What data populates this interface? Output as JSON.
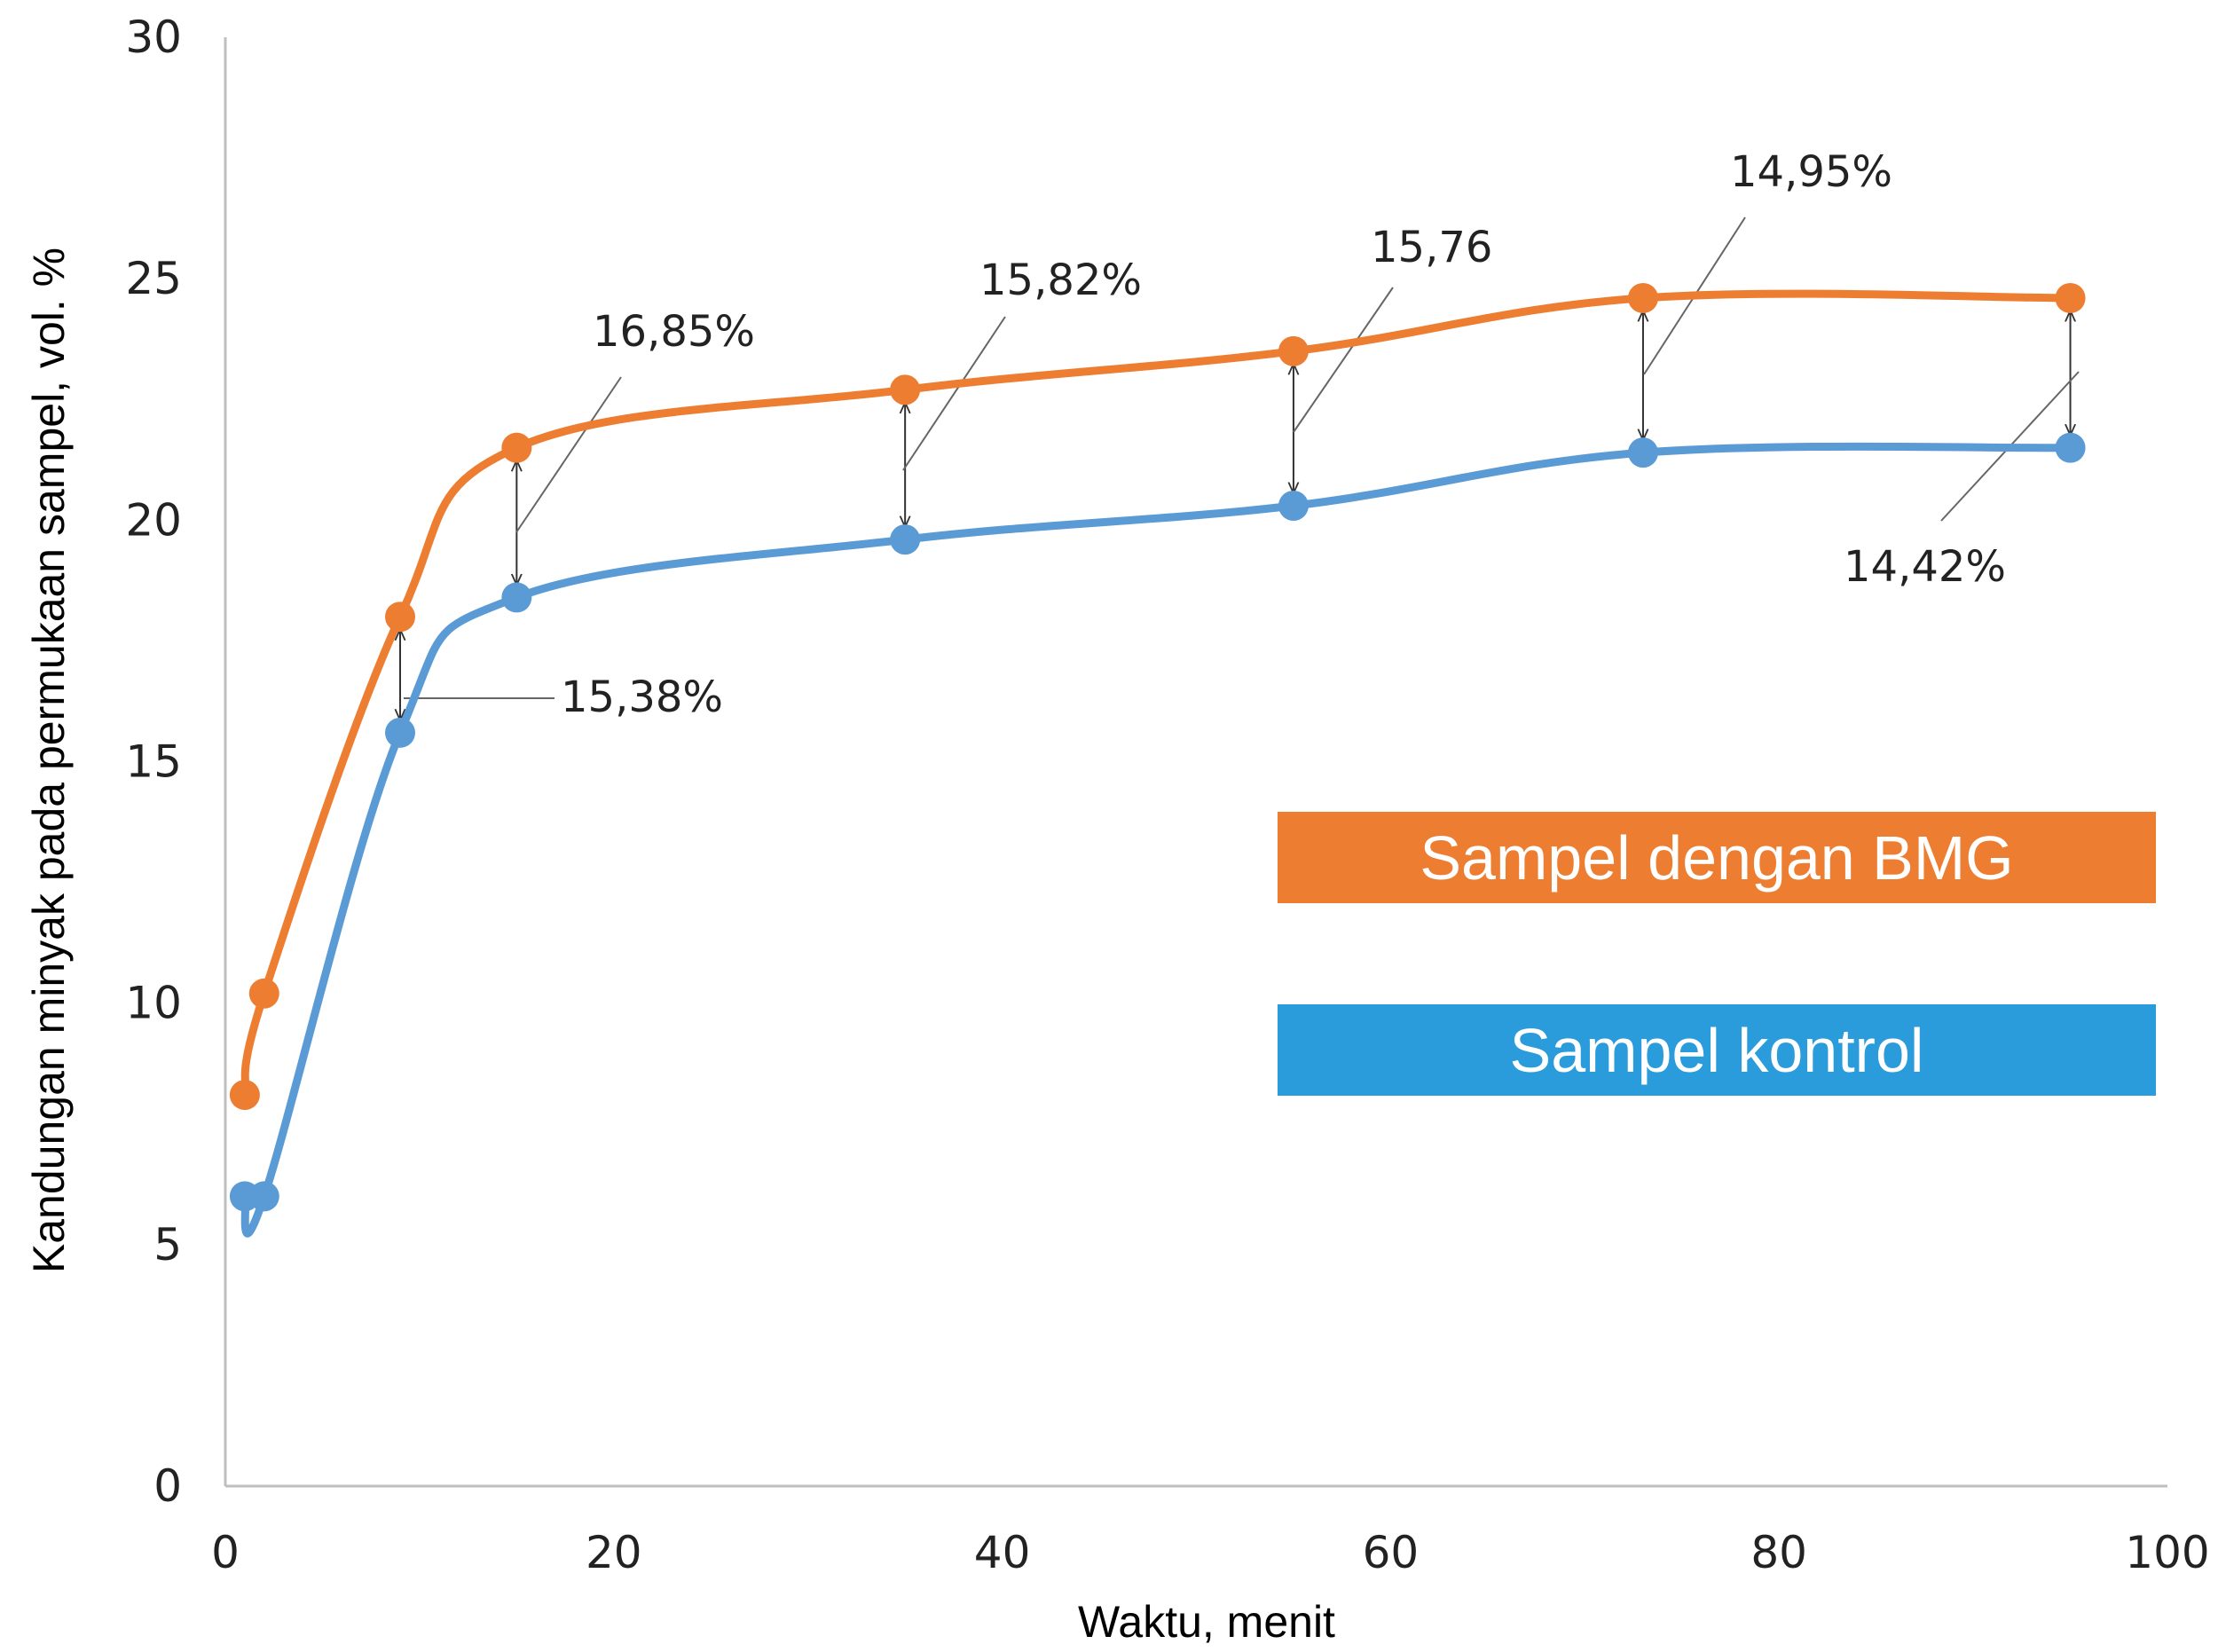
{
  "chart_data": {
    "type": "line",
    "xlabel": "Waktu, menit",
    "ylabel": "Kandungan minyak pada permukaan sampel, vol. %",
    "xlim": [
      0,
      100
    ],
    "ylim": [
      0,
      30
    ],
    "x_ticks": [
      "0",
      "20",
      "40",
      "60",
      "80",
      "100"
    ],
    "y_ticks": [
      "0",
      "5",
      "10",
      "15",
      "20",
      "25",
      "30"
    ],
    "grid": false,
    "series": [
      {
        "name": "Sampel dengan BMG",
        "color": "#ED7D31",
        "x": [
          1,
          2,
          9,
          15,
          35,
          55,
          73,
          95
        ],
        "y": [
          8.1,
          10.2,
          18.0,
          21.5,
          22.7,
          23.5,
          24.6,
          24.6
        ]
      },
      {
        "name": "Sampel kontrol",
        "color": "#5B9BD5",
        "x": [
          1,
          2,
          9,
          15,
          35,
          55,
          73,
          95
        ],
        "y": [
          6.0,
          6.0,
          15.6,
          18.4,
          19.6,
          20.3,
          21.4,
          21.5
        ]
      }
    ],
    "annotations": [
      {
        "text": "15,38%",
        "x": 9
      },
      {
        "text": "16,85%",
        "x": 15
      },
      {
        "text": "15,82%",
        "x": 35
      },
      {
        "text": "15,76",
        "x": 55
      },
      {
        "text": "14,95%",
        "x": 73
      },
      {
        "text": "14,42%",
        "x": 95
      }
    ],
    "legend": {
      "placement": "right-middle",
      "items": [
        {
          "label": "Sampel dengan BMG",
          "color": "#ED7D31"
        },
        {
          "label": "Sampel kontrol",
          "color": "#2A9BDB"
        }
      ]
    }
  }
}
